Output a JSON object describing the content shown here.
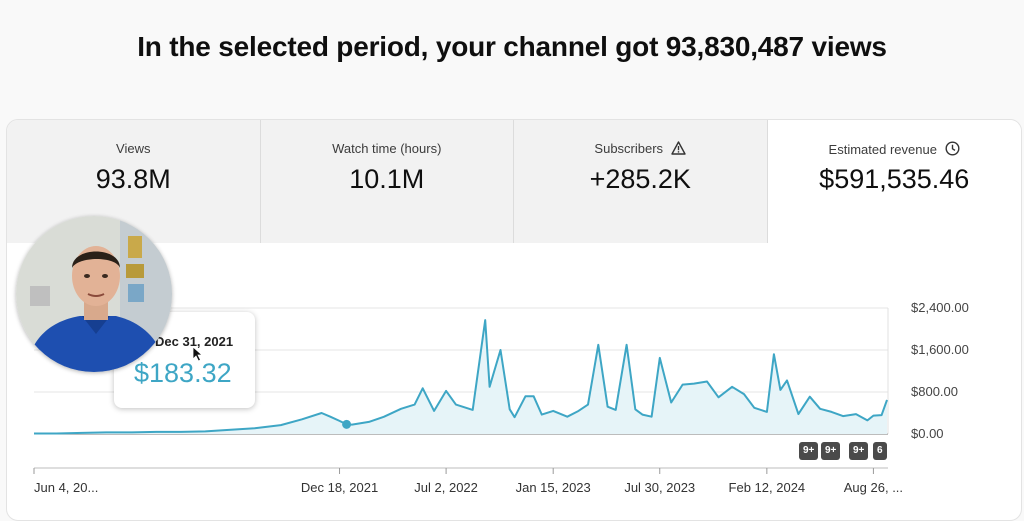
{
  "headline": "In the selected period, your channel got 93,830,487 views",
  "metrics": [
    {
      "label": "Views",
      "value": "93.8M",
      "icon": ""
    },
    {
      "label": "Watch time (hours)",
      "value": "10.1M",
      "icon": ""
    },
    {
      "label": "Subscribers",
      "value": "+285.2K",
      "icon": "warning-icon"
    },
    {
      "label": "Estimated revenue",
      "value": "$591,535.46",
      "icon": "clock-icon"
    }
  ],
  "tooltip": {
    "date": "Dec 31, 2021",
    "value": "$183.32"
  },
  "badges": [
    "9+",
    "9+",
    "9+",
    "6"
  ],
  "colors": {
    "line": "#3ea6c5",
    "fill": "#e6f4f8",
    "tooltip_value": "#3ea6c5"
  },
  "chart_data": {
    "type": "area",
    "title": "",
    "xlabel": "",
    "ylabel": "",
    "x_tick_labels": [
      "Jun 4, 20...",
      "Dec 18, 2021",
      "Jul 2, 2022",
      "Jan 15, 2023",
      "Jul 30, 2023",
      "Feb 12, 2024",
      "Aug 26, ..."
    ],
    "y_tick_labels": [
      "$2,400.00",
      "$1,600.00",
      "$800.00",
      "$0.00"
    ],
    "ylim": [
      0,
      2400
    ],
    "grid": true,
    "series": [
      {
        "name": "",
        "x": [
          "2020-06-04",
          "2020-07-15",
          "2020-09-01",
          "2020-10-15",
          "2020-12-01",
          "2021-01-15",
          "2021-03-01",
          "2021-04-15",
          "2021-06-01",
          "2021-07-15",
          "2021-09-01",
          "2021-10-10",
          "2021-11-15",
          "2021-12-01",
          "2021-12-18",
          "2021-12-31",
          "2022-01-10",
          "2022-02-10",
          "2022-03-10",
          "2022-04-10",
          "2022-05-05",
          "2022-05-20",
          "2022-06-10",
          "2022-07-02",
          "2022-07-20",
          "2022-08-20",
          "2022-09-12",
          "2022-09-20",
          "2022-10-10",
          "2022-10-27",
          "2022-11-05",
          "2022-11-25",
          "2022-12-10",
          "2022-12-25",
          "2023-01-15",
          "2023-02-10",
          "2023-03-01",
          "2023-03-20",
          "2023-04-08",
          "2023-04-25",
          "2023-05-10",
          "2023-05-30",
          "2023-06-15",
          "2023-06-28",
          "2023-07-15",
          "2023-07-30",
          "2023-08-20",
          "2023-09-10",
          "2023-10-01",
          "2023-10-25",
          "2023-11-15",
          "2023-12-10",
          "2024-01-01",
          "2024-01-20",
          "2024-02-12",
          "2024-02-25",
          "2024-03-08",
          "2024-03-20",
          "2024-04-10",
          "2024-05-01",
          "2024-05-20",
          "2024-06-10",
          "2024-07-01",
          "2024-07-25",
          "2024-08-15",
          "2024-08-26",
          "2024-09-10",
          "2024-09-20"
        ],
        "values": [
          10,
          10,
          20,
          30,
          30,
          40,
          40,
          50,
          80,
          110,
          170,
          280,
          400,
          330,
          250,
          183,
          180,
          230,
          330,
          480,
          560,
          870,
          440,
          820,
          560,
          460,
          2170,
          900,
          1600,
          470,
          320,
          720,
          720,
          370,
          440,
          330,
          430,
          560,
          1700,
          520,
          460,
          1700,
          470,
          370,
          330,
          1450,
          600,
          940,
          960,
          1000,
          700,
          900,
          760,
          500,
          420,
          1520,
          840,
          1020,
          380,
          710,
          480,
          420,
          340,
          380,
          260,
          350,
          360,
          650
        ]
      }
    ]
  }
}
